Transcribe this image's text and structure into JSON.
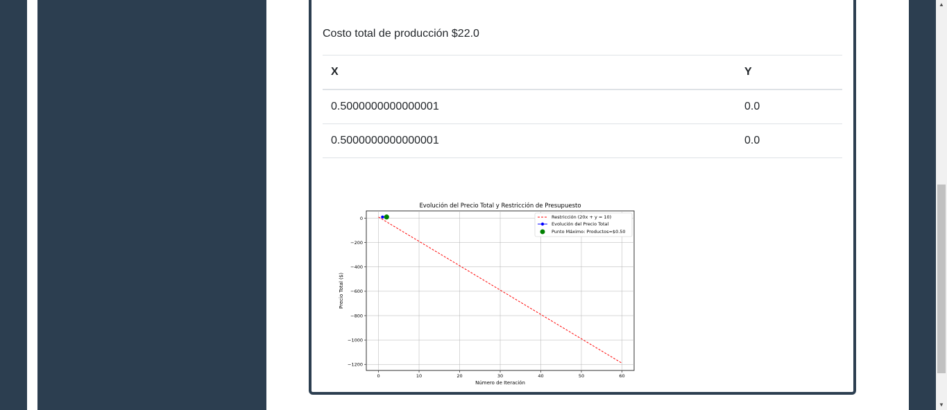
{
  "summary": {
    "cost_label": "Costo total de producción $22.0"
  },
  "table": {
    "headers": [
      "X",
      "Y"
    ],
    "rows": [
      [
        "0.5000000000000001",
        "0.0"
      ],
      [
        "0.5000000000000001",
        "0.0"
      ]
    ]
  },
  "chart_data": {
    "type": "line",
    "title": "Evolución del Precio Total y Restricción de Presupuesto",
    "xlabel": "Número de Iteración",
    "ylabel": "Precio Total ($)",
    "xlim": [
      -3,
      63
    ],
    "ylim": [
      -1250,
      60
    ],
    "xticks": [
      0,
      10,
      20,
      30,
      40,
      50,
      60
    ],
    "yticks": [
      0,
      -200,
      -400,
      -600,
      -800,
      -1000,
      -1200
    ],
    "grid": true,
    "legend_position": "top-right",
    "series": [
      {
        "name": "Restricción (20x + y = 10)",
        "style": "dashed",
        "color": "#ff0000",
        "x": [
          0,
          60
        ],
        "y": [
          10,
          -1190
        ]
      },
      {
        "name": "Evolución del Precio Total",
        "style": "line-marker",
        "color": "#0000ff",
        "x": [
          1,
          2
        ],
        "y": [
          10,
          10
        ]
      },
      {
        "name": "Punto Máximo: Productos=$0.50",
        "style": "point",
        "color": "#008000",
        "x": [
          2
        ],
        "y": [
          10
        ]
      }
    ]
  },
  "colors": {
    "sidebar": "#2c3e50",
    "card_border": "#2c3e50",
    "text": "#212529"
  }
}
